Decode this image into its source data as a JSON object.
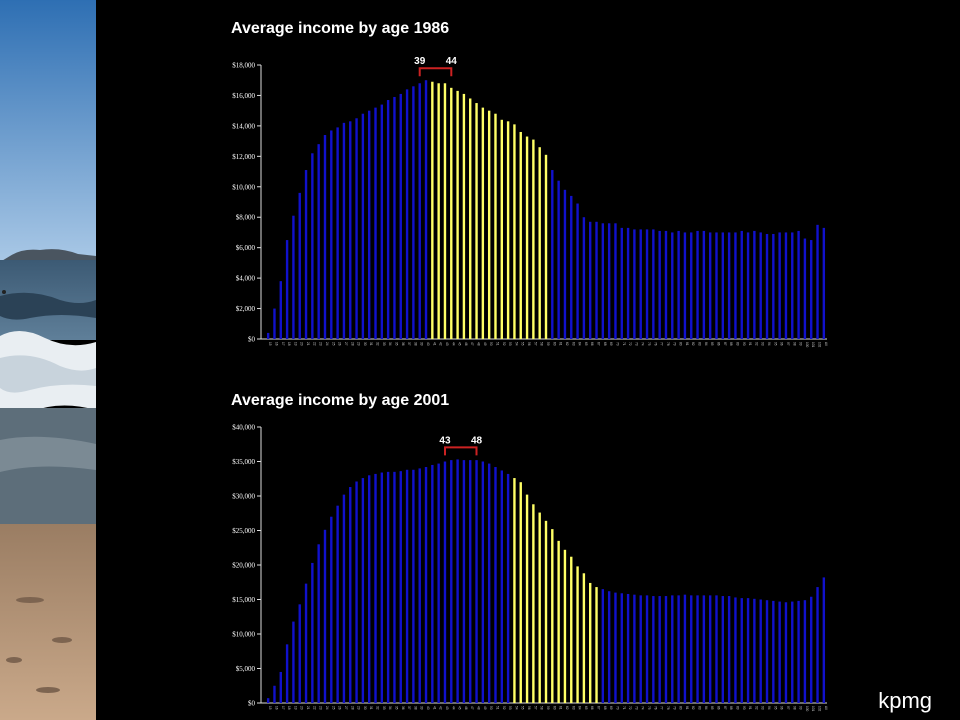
{
  "brand": "kpmg",
  "colors": {
    "highlight": "#ffff66",
    "bar": "#1111cc",
    "bracket": "#cc2222"
  },
  "chart_data": [
    {
      "type": "bar",
      "title": "Average income by age 1986",
      "ylim": [
        0,
        18000
      ],
      "yticks": [
        "$0",
        "$2,000",
        "$4,000",
        "$6,000",
        "$8,000",
        "$10,000",
        "$12,000",
        "$14,000",
        "$16,000",
        "$18,000"
      ],
      "ytick_values": [
        0,
        2000,
        4000,
        6000,
        8000,
        10000,
        12000,
        14000,
        16000,
        18000
      ],
      "x_start": 15,
      "last_label": "All",
      "values": [
        400,
        2000,
        3800,
        6500,
        8100,
        9600,
        11100,
        12200,
        12800,
        13400,
        13700,
        13900,
        14200,
        14300,
        14500,
        14800,
        15000,
        15200,
        15400,
        15700,
        15900,
        16100,
        16400,
        16600,
        16800,
        17000,
        16900,
        16800,
        16800,
        16500,
        16300,
        16100,
        15800,
        15500,
        15200,
        15000,
        14800,
        14400,
        14300,
        14100,
        13600,
        13300,
        13100,
        12600,
        12100,
        11100,
        10400,
        9800,
        9400,
        8900,
        8000,
        7700,
        7700,
        7600,
        7600,
        7600,
        7300,
        7300,
        7200,
        7200,
        7200,
        7200,
        7100,
        7100,
        7000,
        7100,
        7000,
        7000,
        7100,
        7100,
        7000,
        7000,
        7000,
        7000,
        7000,
        7100,
        7000,
        7100,
        7000,
        6900,
        6900,
        7000,
        7000,
        7000,
        7100,
        6600,
        6500,
        7500,
        7300
      ],
      "highlight_range": [
        26,
        44
      ],
      "annotation": {
        "left": "39",
        "right": "44"
      }
    },
    {
      "type": "bar",
      "title": "Average income by age 2001",
      "ylim": [
        0,
        40000
      ],
      "yticks": [
        "$0",
        "$5,000",
        "$10,000",
        "$15,000",
        "$20,000",
        "$25,000",
        "$30,000",
        "$35,000",
        "$40,000"
      ],
      "ytick_values": [
        0,
        5000,
        10000,
        15000,
        20000,
        25000,
        30000,
        35000,
        40000
      ],
      "x_start": 15,
      "last_label": "All",
      "values": [
        700,
        2500,
        4500,
        8500,
        11800,
        14300,
        17300,
        20300,
        23000,
        25100,
        27000,
        28600,
        30200,
        31300,
        32100,
        32600,
        33000,
        33200,
        33400,
        33500,
        33500,
        33600,
        33800,
        33800,
        34000,
        34200,
        34500,
        34700,
        35000,
        35200,
        35300,
        35200,
        35200,
        35200,
        35000,
        34700,
        34200,
        33700,
        33200,
        32600,
        32000,
        30200,
        28800,
        27600,
        26400,
        25200,
        23500,
        22200,
        21200,
        19800,
        18800,
        17400,
        16800,
        16500,
        16200,
        16000,
        15900,
        15800,
        15700,
        15600,
        15600,
        15500,
        15500,
        15500,
        15600,
        15600,
        15700,
        15600,
        15600,
        15600,
        15600,
        15600,
        15500,
        15500,
        15300,
        15200,
        15200,
        15100,
        15000,
        14900,
        14800,
        14700,
        14600,
        14700,
        14800,
        14900,
        15400,
        16800,
        18200
      ],
      "highlight_range": [
        39,
        52
      ],
      "annotation": {
        "left": "43",
        "right": "48"
      }
    }
  ]
}
